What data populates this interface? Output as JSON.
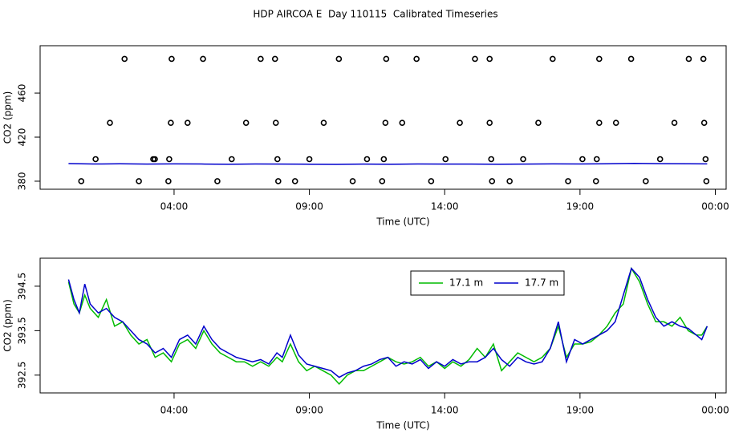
{
  "title": "HDP AIRCOA E  Day 110115  Calibrated Timeseries",
  "chart_data": [
    {
      "type": "scatter",
      "xlabel": "Time (UTC)",
      "ylabel": "CO2 (ppm)",
      "xlim": [
        -0.95,
        24.4
      ],
      "ylim": [
        372.7,
        503
      ],
      "xticks": [
        {
          "value": 4,
          "label": "04:00"
        },
        {
          "value": 9,
          "label": "09:00"
        },
        {
          "value": 14,
          "label": "14:00"
        },
        {
          "value": 19,
          "label": "19:00"
        },
        {
          "value": 24,
          "label": "00:00"
        }
      ],
      "yticks": [
        380,
        420,
        460
      ],
      "series": [
        {
          "type": "scatter",
          "color": "#000000",
          "x": [
            2.17,
            3.91,
            5.07,
            7.2,
            7.73,
            10.09,
            11.84,
            12.96,
            15.12,
            15.66,
            17.99,
            19.71,
            20.89,
            23.02,
            23.56,
            1.63,
            3.88,
            4.5,
            6.66,
            7.76,
            9.53,
            11.81,
            12.43,
            14.56,
            15.66,
            17.46,
            19.71,
            20.33,
            22.49,
            23.59,
            1.1,
            3.23,
            3.29,
            3.82,
            6.13,
            7.82,
            9.0,
            11.13,
            11.75,
            14.03,
            15.72,
            16.9,
            19.09,
            19.62,
            21.96,
            23.64,
            0.57,
            2.7,
            3.79,
            5.6,
            7.85,
            8.47,
            10.6,
            11.69,
            13.5,
            15.75,
            16.4,
            18.56,
            19.59,
            21.43,
            23.67
          ],
          "values": [
            491,
            491,
            491,
            491,
            491,
            491,
            491,
            491,
            491,
            491,
            491,
            491,
            491,
            491,
            491,
            433,
            433,
            433,
            433,
            433,
            433,
            433,
            433,
            433,
            433,
            433,
            433,
            433,
            433,
            433,
            400,
            400,
            400,
            400,
            400,
            400,
            400,
            400,
            400,
            400,
            400,
            400,
            400,
            400,
            400,
            400,
            380,
            380,
            380,
            380,
            380,
            380,
            380,
            380,
            380,
            380,
            380,
            380,
            380,
            380,
            380
          ]
        },
        {
          "type": "line",
          "color": "#0000cc",
          "x": [
            0.1,
            1,
            2,
            3,
            4,
            5,
            6,
            7,
            8,
            9,
            10,
            11,
            12,
            13,
            14,
            15,
            16,
            17,
            18,
            19,
            20,
            21,
            22,
            23,
            23.7
          ],
          "values": [
            396,
            395.6,
            395.8,
            395.5,
            395.7,
            395.6,
            395.4,
            395.6,
            395.5,
            395.4,
            395.3,
            395.5,
            395.4,
            395.6,
            395.5,
            395.5,
            395.4,
            395.5,
            395.7,
            395.6,
            395.8,
            396.2,
            395.9,
            395.8,
            395.7
          ]
        }
      ]
    },
    {
      "type": "line",
      "xlabel": "Time (UTC)",
      "ylabel": "CO2 (ppm)",
      "xlim": [
        -0.95,
        24.4
      ],
      "ylim": [
        392.1,
        395.13
      ],
      "xticks": [
        {
          "value": 4,
          "label": "04:00"
        },
        {
          "value": 9,
          "label": "09:00"
        },
        {
          "value": 14,
          "label": "14:00"
        },
        {
          "value": 19,
          "label": "19:00"
        },
        {
          "value": 24,
          "label": "00:00"
        }
      ],
      "yticks": [
        392.5,
        393.5,
        394.5
      ],
      "legend": "top-right",
      "x": [
        0.1,
        0.3,
        0.5,
        0.7,
        0.9,
        1.2,
        1.5,
        1.8,
        2.1,
        2.4,
        2.7,
        3.0,
        3.3,
        3.6,
        3.9,
        4.2,
        4.5,
        4.8,
        5.1,
        5.4,
        5.7,
        6.0,
        6.3,
        6.6,
        6.9,
        7.2,
        7.5,
        7.8,
        8.0,
        8.3,
        8.6,
        8.9,
        9.2,
        9.5,
        9.8,
        10.1,
        10.4,
        10.7,
        11.0,
        11.3,
        11.6,
        11.9,
        12.2,
        12.5,
        12.8,
        13.1,
        13.4,
        13.7,
        14.0,
        14.3,
        14.6,
        14.9,
        15.2,
        15.5,
        15.8,
        16.1,
        16.4,
        16.7,
        17.0,
        17.3,
        17.6,
        17.9,
        18.2,
        18.5,
        18.8,
        19.1,
        19.4,
        19.7,
        20.0,
        20.3,
        20.6,
        20.9,
        21.2,
        21.5,
        21.8,
        22.1,
        22.4,
        22.7,
        23.0,
        23.3,
        23.5,
        23.7
      ],
      "series": [
        {
          "name": "17.1 m",
          "color": "#00bb00",
          "values": [
            394.6,
            394.1,
            393.9,
            394.3,
            394.0,
            393.8,
            394.2,
            393.6,
            393.7,
            393.4,
            393.2,
            393.3,
            392.9,
            393.0,
            392.8,
            393.2,
            393.3,
            393.1,
            393.5,
            393.2,
            393.0,
            392.9,
            392.8,
            392.8,
            392.7,
            392.8,
            392.7,
            392.9,
            392.8,
            393.2,
            392.8,
            392.6,
            392.7,
            392.6,
            392.5,
            392.3,
            392.5,
            392.6,
            392.6,
            392.7,
            392.8,
            392.9,
            392.8,
            392.75,
            392.8,
            392.9,
            392.7,
            392.8,
            392.65,
            392.8,
            392.7,
            392.85,
            393.1,
            392.9,
            393.2,
            392.6,
            392.8,
            393.0,
            392.9,
            392.8,
            392.9,
            393.1,
            393.6,
            392.9,
            393.2,
            393.2,
            393.25,
            393.4,
            393.6,
            393.9,
            394.1,
            394.9,
            394.6,
            394.1,
            393.7,
            393.7,
            393.6,
            393.8,
            393.5,
            393.4,
            393.4,
            393.6
          ]
        },
        {
          "name": "17.7 m",
          "color": "#0000cc",
          "values": [
            394.65,
            394.2,
            393.9,
            394.55,
            394.1,
            393.9,
            394.0,
            393.8,
            393.7,
            393.5,
            393.3,
            393.2,
            393.0,
            393.1,
            392.9,
            393.3,
            393.4,
            393.2,
            393.6,
            393.3,
            393.1,
            393.0,
            392.9,
            392.85,
            392.8,
            392.85,
            392.75,
            393.0,
            392.9,
            393.4,
            392.95,
            392.75,
            392.7,
            392.65,
            392.6,
            392.45,
            392.55,
            392.6,
            392.7,
            392.75,
            392.85,
            392.9,
            392.7,
            392.8,
            392.75,
            392.85,
            392.65,
            392.8,
            392.7,
            392.85,
            392.75,
            392.8,
            392.8,
            392.9,
            393.1,
            392.85,
            392.7,
            392.9,
            392.8,
            392.75,
            392.8,
            393.1,
            393.7,
            392.8,
            393.3,
            393.2,
            393.3,
            393.4,
            393.5,
            393.7,
            394.3,
            394.9,
            394.7,
            394.2,
            393.8,
            393.6,
            393.7,
            393.6,
            393.55,
            393.4,
            393.3,
            393.6
          ]
        }
      ]
    }
  ]
}
